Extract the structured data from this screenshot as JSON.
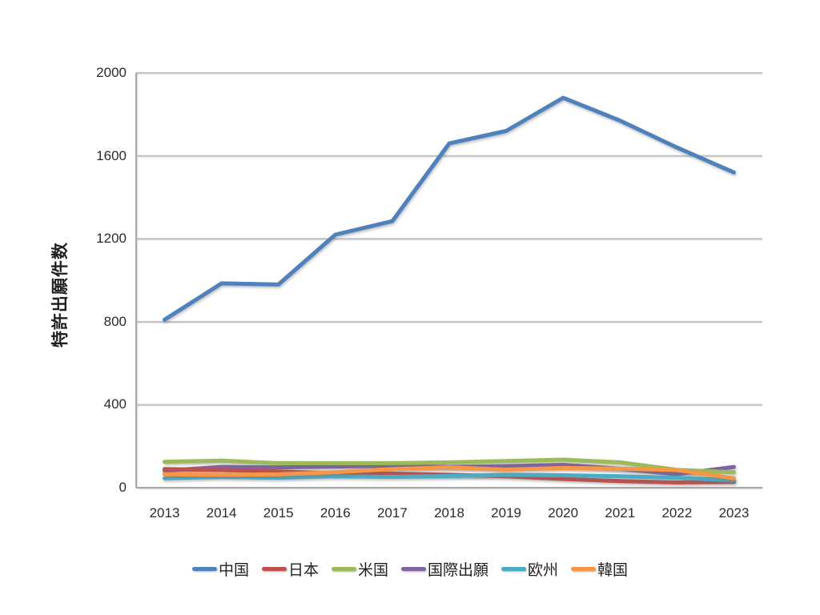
{
  "chart_data": {
    "type": "line",
    "title": "",
    "ylabel": "特許出願件数",
    "xlabel": "",
    "categories": [
      "2013",
      "2014",
      "2015",
      "2016",
      "2017",
      "2018",
      "2019",
      "2020",
      "2021",
      "2022",
      "2023"
    ],
    "series": [
      {
        "name": "中国",
        "color": "#4F81BD",
        "values": [
          810,
          985,
          980,
          1220,
          1285,
          1660,
          1720,
          1880,
          1770,
          1640,
          1520
        ]
      },
      {
        "name": "日本",
        "color": "#C0504D",
        "values": [
          90,
          85,
          78,
          70,
          68,
          62,
          55,
          42,
          32,
          25,
          28
        ]
      },
      {
        "name": "米国",
        "color": "#9BBB59",
        "values": [
          125,
          130,
          118,
          118,
          118,
          122,
          128,
          135,
          122,
          86,
          74
        ]
      },
      {
        "name": "国際出願",
        "color": "#8064A2",
        "values": [
          82,
          100,
          98,
          102,
          105,
          100,
          104,
          110,
          92,
          65,
          100
        ]
      },
      {
        "name": "欧州",
        "color": "#4BACC6",
        "values": [
          45,
          52,
          48,
          55,
          52,
          56,
          62,
          60,
          55,
          48,
          36
        ]
      },
      {
        "name": "韓国",
        "color": "#F79646",
        "values": [
          65,
          62,
          64,
          75,
          90,
          98,
          87,
          95,
          92,
          85,
          45
        ]
      }
    ],
    "ylim": [
      0,
      2000
    ],
    "yticks": [
      0,
      400,
      800,
      1200,
      1600,
      2000
    ],
    "grid": "horizontal",
    "grid_color": "#BFBFBF",
    "axis_color": "#A8A8A8",
    "legend_position": "bottom"
  }
}
